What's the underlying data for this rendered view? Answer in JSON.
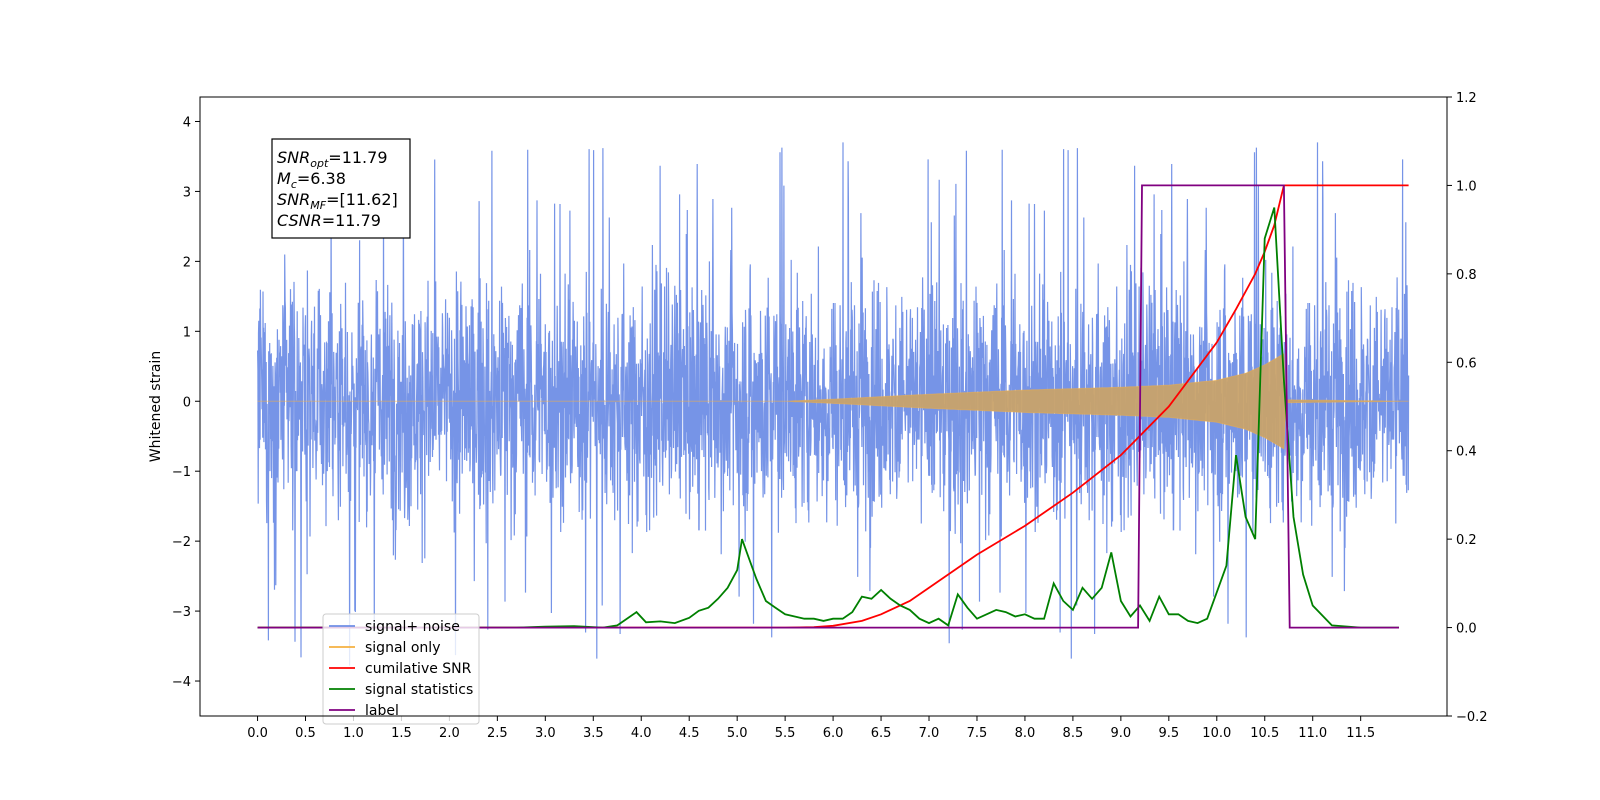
{
  "chart_data": {
    "type": "line",
    "title": "",
    "xlabel": "",
    "ylabel": "Whitened strain",
    "xlim": [
      -0.6,
      12.4
    ],
    "ylim": [
      -4.5,
      4.35
    ],
    "y2lim": [
      -0.2,
      1.2
    ],
    "grid": false,
    "legend_position": "lower-left",
    "x_ticks": [
      0.0,
      0.5,
      1.0,
      1.5,
      2.0,
      2.5,
      3.0,
      3.5,
      4.0,
      4.5,
      5.0,
      5.5,
      6.0,
      6.5,
      7.0,
      7.5,
      8.0,
      8.5,
      9.0,
      9.5,
      10.0,
      10.5,
      11.0,
      11.5
    ],
    "x_tick_labels": [
      "0.0",
      "0.5",
      "1.0",
      "1.5",
      "2.0",
      "2.5",
      "3.0",
      "3.5",
      "4.0",
      "4.5",
      "5.0",
      "5.5",
      "6.0",
      "6.5",
      "7.0",
      "7.5",
      "8.0",
      "8.5",
      "9.0",
      "9.5",
      "10.0",
      "10.5",
      "11.0",
      "11.5"
    ],
    "y_ticks": [
      -4,
      -3,
      -2,
      -1,
      0,
      1,
      2,
      3,
      4
    ],
    "y_tick_labels": [
      "−4",
      "−3",
      "−2",
      "−1",
      "0",
      "1",
      "2",
      "3",
      "4"
    ],
    "y2_ticks": [
      -0.2,
      0.0,
      0.2,
      0.4,
      0.6,
      0.8,
      1.0,
      1.2
    ],
    "y2_tick_labels": [
      "−0.2",
      "0.0",
      "0.2",
      "0.4",
      "0.6",
      "0.8",
      "1.0",
      "1.2"
    ],
    "series": [
      {
        "name": "signal+ noise",
        "axis": "left",
        "color": "#6f8ee6",
        "description_values": {
          "x_start": 0.0,
          "x_end": 12.0,
          "amplitude_typical": 2.3,
          "amplitude_peak": 3.9
        }
      },
      {
        "name": "signal only",
        "axis": "left",
        "color": "#f5b041",
        "envelope": {
          "x": [
            0.0,
            5.5,
            6.0,
            7.0,
            8.0,
            9.0,
            9.5,
            10.0,
            10.3,
            10.5,
            10.6,
            10.7,
            10.72,
            12.0
          ],
          "amp": [
            0.0,
            0.0,
            0.03,
            0.1,
            0.16,
            0.2,
            0.23,
            0.3,
            0.4,
            0.52,
            0.6,
            0.68,
            0.02,
            0.0
          ]
        }
      },
      {
        "name": "cumilative SNR",
        "axis": "right",
        "color": "#ff0000",
        "x": [
          0.0,
          5.5,
          5.8,
          6.0,
          6.3,
          6.5,
          6.8,
          7.0,
          7.5,
          8.0,
          8.5,
          9.0,
          9.5,
          10.0,
          10.2,
          10.4,
          10.5,
          10.6,
          10.7,
          10.72,
          11.0,
          12.0
        ],
        "values": [
          0.0,
          0.0,
          0.001,
          0.004,
          0.015,
          0.03,
          0.06,
          0.09,
          0.165,
          0.23,
          0.305,
          0.39,
          0.5,
          0.645,
          0.72,
          0.8,
          0.85,
          0.91,
          1.0,
          1.0,
          1.0,
          1.0
        ]
      },
      {
        "name": "signal statistics",
        "axis": "right",
        "color": "#008000",
        "x": [
          0.0,
          2.7,
          3.0,
          3.3,
          3.6,
          3.75,
          3.85,
          3.95,
          4.05,
          4.2,
          4.35,
          4.5,
          4.6,
          4.7,
          4.8,
          4.9,
          5.0,
          5.05,
          5.1,
          5.2,
          5.3,
          5.4,
          5.5,
          5.6,
          5.7,
          5.8,
          5.9,
          6.0,
          6.1,
          6.2,
          6.3,
          6.4,
          6.5,
          6.6,
          6.7,
          6.8,
          6.9,
          7.0,
          7.1,
          7.2,
          7.3,
          7.4,
          7.5,
          7.6,
          7.7,
          7.8,
          7.9,
          8.0,
          8.1,
          8.2,
          8.3,
          8.4,
          8.5,
          8.6,
          8.7,
          8.8,
          8.9,
          9.0,
          9.1,
          9.2,
          9.3,
          9.4,
          9.5,
          9.6,
          9.7,
          9.8,
          9.9,
          10.0,
          10.1,
          10.2,
          10.3,
          10.4,
          10.5,
          10.6,
          10.7,
          10.8,
          10.9,
          11.0,
          11.2,
          11.5,
          11.9
        ],
        "values": [
          0.0,
          0.0,
          0.002,
          0.003,
          0.0,
          0.005,
          0.02,
          0.035,
          0.012,
          0.014,
          0.01,
          0.022,
          0.038,
          0.045,
          0.065,
          0.09,
          0.13,
          0.2,
          0.17,
          0.11,
          0.06,
          0.045,
          0.03,
          0.025,
          0.02,
          0.02,
          0.015,
          0.02,
          0.02,
          0.035,
          0.07,
          0.065,
          0.085,
          0.065,
          0.05,
          0.04,
          0.02,
          0.01,
          0.02,
          0.005,
          0.075,
          0.045,
          0.02,
          0.03,
          0.04,
          0.035,
          0.025,
          0.03,
          0.02,
          0.02,
          0.1,
          0.06,
          0.04,
          0.09,
          0.065,
          0.09,
          0.17,
          0.06,
          0.025,
          0.05,
          0.015,
          0.07,
          0.03,
          0.03,
          0.015,
          0.01,
          0.02,
          0.08,
          0.14,
          0.39,
          0.25,
          0.2,
          0.88,
          0.95,
          0.56,
          0.25,
          0.12,
          0.05,
          0.005,
          0.0,
          0.0
        ]
      },
      {
        "name": "label",
        "axis": "right",
        "color": "#800080",
        "x": [
          0.0,
          9.18,
          9.22,
          10.7,
          10.76,
          11.9
        ],
        "values": [
          0.0,
          0.0,
          1.0,
          1.0,
          0.0,
          0.0
        ]
      }
    ],
    "legend_entries": [
      {
        "label": "signal+ noise",
        "color": "#6f8ee6"
      },
      {
        "label": "signal only",
        "color": "#f5b041"
      },
      {
        "label": "cumilative SNR",
        "color": "#ff0000"
      },
      {
        "label": "signal statistics",
        "color": "#008000"
      },
      {
        "label": "label",
        "color": "#800080"
      }
    ],
    "annotation": {
      "lines": [
        {
          "base": "SNR",
          "sub": "opt",
          "rest": "=11.79"
        },
        {
          "base": "M",
          "sub": "c",
          "rest": "=6.38"
        },
        {
          "base": "SNR",
          "sub": "MF",
          "rest": "=[11.62]"
        },
        {
          "base": "CSNR",
          "sub": "",
          "rest": "=11.79"
        }
      ]
    }
  }
}
